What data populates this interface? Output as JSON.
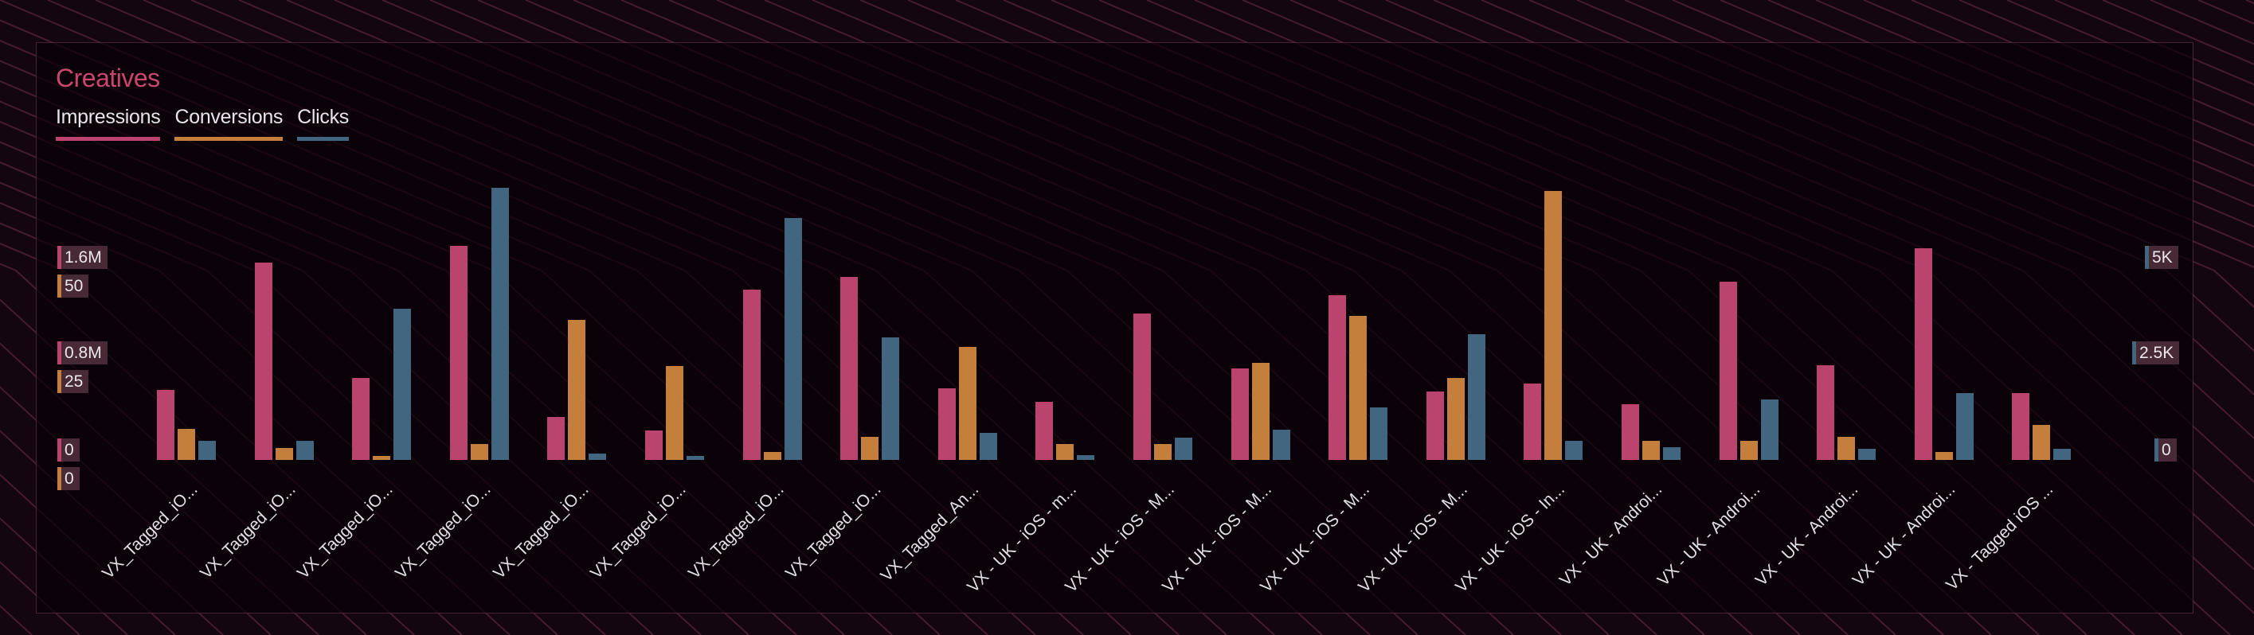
{
  "card": {
    "title": "Creatives"
  },
  "legend": [
    {
      "label": "Impressions",
      "color": "#bb446e"
    },
    {
      "label": "Conversions",
      "color": "#c47f3c"
    },
    {
      "label": "Clicks",
      "color": "#426580"
    }
  ],
  "axes": {
    "left_impressions": [
      "1.6M",
      "0.8M",
      "0"
    ],
    "left_conversions": [
      "50",
      "25",
      "0"
    ],
    "right_clicks": [
      "5K",
      "2.5K",
      "0"
    ]
  },
  "chart_data": {
    "type": "bar",
    "title": "Creatives",
    "xlabel": "",
    "ylabel": "",
    "legend_position": "top-left",
    "grid": false,
    "categories": [
      "VX_Tagged_iO...",
      "VX_Tagged_iO...",
      "VX_Tagged_iO...",
      "VX_Tagged_iO...",
      "VX_Tagged_iO...",
      "VX_Tagged_iO...",
      "VX_Tagged_iO...",
      "VX_Tagged_iO...",
      "VX_Tagged_An...",
      "VX - UK - iOS - m...",
      "VX - UK - iOS - M...",
      "VX - UK - iOS - M...",
      "VX - UK - iOS - M...",
      "VX - UK - iOS - M...",
      "VX - UK - iOS - In...",
      "VX - UK - Androi...",
      "VX - UK - Androi...",
      "VX - UK - Androi...",
      "VX - UK - Androi...",
      "VX - Tagged iOS ..."
    ],
    "series": [
      {
        "name": "Impressions",
        "axis": "left",
        "ylim": [
          0,
          1600000
        ],
        "color": "#bb446e",
        "values": [
          575000,
          1620000,
          670000,
          1760000,
          350000,
          240000,
          1400000,
          1500000,
          590000,
          480000,
          1200000,
          750000,
          1350000,
          560000,
          630000,
          460000,
          1460000,
          780000,
          1740000,
          550000
        ]
      },
      {
        "name": "Conversions",
        "axis": "left",
        "ylim": [
          0,
          50
        ],
        "color": "#c47f3c",
        "values": [
          8,
          3,
          1,
          4,
          36,
          24,
          2,
          6,
          29,
          4,
          4,
          25,
          37,
          21,
          69,
          5,
          5,
          6,
          2,
          9
        ]
      },
      {
        "name": "Clicks",
        "axis": "right",
        "ylim": [
          0,
          5000
        ],
        "color": "#426580",
        "values": [
          490,
          490,
          3880,
          6980,
          160,
          100,
          6200,
          3140,
          690,
          120,
          570,
          780,
          1350,
          3220,
          490,
          330,
          1550,
          290,
          1710,
          290
        ]
      }
    ],
    "y_ticks_left_impressions": [
      "0",
      "0.8M",
      "1.6M"
    ],
    "y_ticks_left_conversions": [
      "0",
      "25",
      "50"
    ],
    "y_ticks_right_clicks": [
      "0",
      "2.5K",
      "5K"
    ]
  }
}
